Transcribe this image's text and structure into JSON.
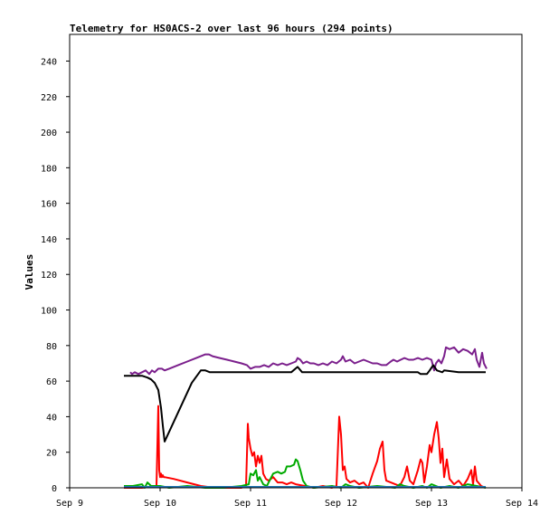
{
  "chart_data": {
    "type": "line",
    "title": "Telemetry for HS0ACS-2 over last 96 hours (294 points)",
    "ylabel": "Values",
    "xlabel": "",
    "x_unit": "days (September)",
    "xlim": [
      9,
      14
    ],
    "ylim": [
      0,
      255
    ],
    "x_ticks": [
      {
        "value": 9,
        "label": "Sep 9"
      },
      {
        "value": 10,
        "label": "Sep 10"
      },
      {
        "value": 11,
        "label": "Sep 11"
      },
      {
        "value": 12,
        "label": "Sep 12"
      },
      {
        "value": 13,
        "label": "Sep 13"
      },
      {
        "value": 14,
        "label": "Sep 14"
      }
    ],
    "y_ticks": [
      0,
      20,
      40,
      60,
      80,
      100,
      120,
      140,
      160,
      180,
      200,
      220,
      240
    ],
    "grid": false,
    "legend": "none",
    "series": [
      {
        "color": "#7b1f8c",
        "points": [
          [
            9.67,
            65
          ],
          [
            9.69,
            64
          ],
          [
            9.72,
            65
          ],
          [
            9.76,
            64
          ],
          [
            9.8,
            65
          ],
          [
            9.84,
            66
          ],
          [
            9.88,
            64
          ],
          [
            9.91,
            66
          ],
          [
            9.94,
            65
          ],
          [
            9.98,
            67
          ],
          [
            10.02,
            67
          ],
          [
            10.05,
            66
          ],
          [
            10.1,
            67
          ],
          [
            10.2,
            69
          ],
          [
            10.3,
            71
          ],
          [
            10.4,
            73
          ],
          [
            10.5,
            75
          ],
          [
            10.54,
            75
          ],
          [
            10.58,
            74
          ],
          [
            10.66,
            73
          ],
          [
            10.74,
            72
          ],
          [
            10.82,
            71
          ],
          [
            10.9,
            70
          ],
          [
            10.96,
            69
          ],
          [
            11.0,
            67
          ],
          [
            11.05,
            68
          ],
          [
            11.1,
            68
          ],
          [
            11.15,
            69
          ],
          [
            11.2,
            68
          ],
          [
            11.25,
            70
          ],
          [
            11.3,
            69
          ],
          [
            11.35,
            70
          ],
          [
            11.4,
            69
          ],
          [
            11.45,
            70
          ],
          [
            11.5,
            71
          ],
          [
            11.52,
            73
          ],
          [
            11.55,
            72
          ],
          [
            11.58,
            70
          ],
          [
            11.62,
            71
          ],
          [
            11.66,
            70
          ],
          [
            11.7,
            70
          ],
          [
            11.75,
            69
          ],
          [
            11.8,
            70
          ],
          [
            11.85,
            69
          ],
          [
            11.9,
            71
          ],
          [
            11.95,
            70
          ],
          [
            12.0,
            72
          ],
          [
            12.02,
            74
          ],
          [
            12.05,
            71
          ],
          [
            12.1,
            72
          ],
          [
            12.15,
            70
          ],
          [
            12.2,
            71
          ],
          [
            12.25,
            72
          ],
          [
            12.3,
            71
          ],
          [
            12.35,
            70
          ],
          [
            12.4,
            70
          ],
          [
            12.45,
            69
          ],
          [
            12.5,
            69
          ],
          [
            12.55,
            71
          ],
          [
            12.58,
            72
          ],
          [
            12.62,
            71
          ],
          [
            12.66,
            72
          ],
          [
            12.7,
            73
          ],
          [
            12.75,
            72
          ],
          [
            12.8,
            72
          ],
          [
            12.85,
            73
          ],
          [
            12.9,
            72
          ],
          [
            12.95,
            73
          ],
          [
            13.0,
            72
          ],
          [
            13.03,
            66
          ],
          [
            13.05,
            70
          ],
          [
            13.08,
            72
          ],
          [
            13.11,
            70
          ],
          [
            13.14,
            74
          ],
          [
            13.16,
            79
          ],
          [
            13.2,
            78
          ],
          [
            13.25,
            79
          ],
          [
            13.3,
            76
          ],
          [
            13.35,
            78
          ],
          [
            13.4,
            77
          ],
          [
            13.45,
            75
          ],
          [
            13.48,
            78
          ],
          [
            13.5,
            72
          ],
          [
            13.53,
            68
          ],
          [
            13.56,
            76
          ],
          [
            13.58,
            70
          ],
          [
            13.61,
            67
          ]
        ]
      },
      {
        "color": "#000000",
        "points": [
          [
            9.6,
            63
          ],
          [
            9.7,
            63
          ],
          [
            9.8,
            63
          ],
          [
            9.86,
            62
          ],
          [
            9.9,
            61
          ],
          [
            9.94,
            59
          ],
          [
            9.98,
            55
          ],
          [
            10.01,
            45
          ],
          [
            10.03,
            35
          ],
          [
            10.05,
            26
          ],
          [
            10.15,
            37
          ],
          [
            10.25,
            48
          ],
          [
            10.35,
            59
          ],
          [
            10.45,
            66
          ],
          [
            10.5,
            66
          ],
          [
            10.55,
            65
          ],
          [
            10.7,
            65
          ],
          [
            10.9,
            65
          ],
          [
            11.0,
            65
          ],
          [
            11.1,
            65
          ],
          [
            11.3,
            65
          ],
          [
            11.45,
            65
          ],
          [
            11.52,
            68
          ],
          [
            11.57,
            65
          ],
          [
            11.8,
            65
          ],
          [
            12.0,
            65
          ],
          [
            12.2,
            65
          ],
          [
            12.4,
            65
          ],
          [
            12.6,
            65
          ],
          [
            12.85,
            65
          ],
          [
            12.88,
            64
          ],
          [
            12.95,
            64
          ],
          [
            12.98,
            66
          ],
          [
            13.02,
            69
          ],
          [
            13.06,
            66
          ],
          [
            13.12,
            65
          ],
          [
            13.14,
            66
          ],
          [
            13.3,
            65
          ],
          [
            13.5,
            65
          ],
          [
            13.6,
            65
          ]
        ]
      },
      {
        "color": "#ff0000",
        "points": [
          [
            9.6,
            0
          ],
          [
            9.8,
            0
          ],
          [
            9.96,
            1
          ],
          [
            9.98,
            46
          ],
          [
            9.99,
            10
          ],
          [
            10.0,
            6
          ],
          [
            10.01,
            8
          ],
          [
            10.02,
            6
          ],
          [
            10.03,
            7
          ],
          [
            10.04,
            6
          ],
          [
            10.05,
            6
          ],
          [
            10.15,
            5
          ],
          [
            10.3,
            3
          ],
          [
            10.45,
            1
          ],
          [
            10.6,
            0
          ],
          [
            10.75,
            0
          ],
          [
            10.9,
            0
          ],
          [
            10.95,
            1
          ],
          [
            10.97,
            36
          ],
          [
            10.98,
            28
          ],
          [
            11.0,
            22
          ],
          [
            11.02,
            18
          ],
          [
            11.04,
            20
          ],
          [
            11.06,
            12
          ],
          [
            11.08,
            18
          ],
          [
            11.1,
            14
          ],
          [
            11.12,
            18
          ],
          [
            11.14,
            8
          ],
          [
            11.17,
            5
          ],
          [
            11.2,
            4
          ],
          [
            11.25,
            6
          ],
          [
            11.3,
            3
          ],
          [
            11.35,
            3
          ],
          [
            11.4,
            2
          ],
          [
            11.45,
            3
          ],
          [
            11.5,
            2
          ],
          [
            11.6,
            1
          ],
          [
            11.7,
            0
          ],
          [
            11.8,
            1
          ],
          [
            11.9,
            0
          ],
          [
            11.95,
            1
          ],
          [
            11.98,
            40
          ],
          [
            12.0,
            30
          ],
          [
            12.02,
            10
          ],
          [
            12.04,
            12
          ],
          [
            12.06,
            5
          ],
          [
            12.1,
            3
          ],
          [
            12.15,
            4
          ],
          [
            12.2,
            2
          ],
          [
            12.25,
            3
          ],
          [
            12.3,
            0
          ],
          [
            12.35,
            8
          ],
          [
            12.4,
            15
          ],
          [
            12.43,
            22
          ],
          [
            12.46,
            26
          ],
          [
            12.48,
            10
          ],
          [
            12.5,
            4
          ],
          [
            12.55,
            3
          ],
          [
            12.6,
            2
          ],
          [
            12.65,
            1
          ],
          [
            12.7,
            6
          ],
          [
            12.73,
            12
          ],
          [
            12.76,
            4
          ],
          [
            12.8,
            2
          ],
          [
            12.85,
            10
          ],
          [
            12.88,
            16
          ],
          [
            12.9,
            14
          ],
          [
            12.92,
            3
          ],
          [
            12.95,
            12
          ],
          [
            12.98,
            24
          ],
          [
            13.0,
            20
          ],
          [
            13.03,
            30
          ],
          [
            13.06,
            37
          ],
          [
            13.08,
            28
          ],
          [
            13.1,
            14
          ],
          [
            13.12,
            22
          ],
          [
            13.14,
            6
          ],
          [
            13.17,
            16
          ],
          [
            13.2,
            5
          ],
          [
            13.25,
            2
          ],
          [
            13.3,
            4
          ],
          [
            13.35,
            1
          ],
          [
            13.4,
            5
          ],
          [
            13.44,
            10
          ],
          [
            13.46,
            2
          ],
          [
            13.48,
            12
          ],
          [
            13.5,
            4
          ],
          [
            13.55,
            1
          ],
          [
            13.6,
            0
          ]
        ]
      },
      {
        "color": "#00aa00",
        "points": [
          [
            9.6,
            1
          ],
          [
            9.7,
            1
          ],
          [
            9.8,
            2
          ],
          [
            9.83,
            0
          ],
          [
            9.86,
            3
          ],
          [
            9.9,
            1
          ],
          [
            9.95,
            1
          ],
          [
            10.0,
            1
          ],
          [
            10.1,
            0
          ],
          [
            10.3,
            1
          ],
          [
            10.5,
            0
          ],
          [
            10.7,
            0
          ],
          [
            10.9,
            1
          ],
          [
            10.98,
            2
          ],
          [
            11.0,
            8
          ],
          [
            11.03,
            7
          ],
          [
            11.06,
            10
          ],
          [
            11.08,
            4
          ],
          [
            11.1,
            6
          ],
          [
            11.14,
            2
          ],
          [
            11.18,
            1
          ],
          [
            11.2,
            3
          ],
          [
            11.25,
            8
          ],
          [
            11.3,
            9
          ],
          [
            11.34,
            8
          ],
          [
            11.38,
            9
          ],
          [
            11.4,
            12
          ],
          [
            11.44,
            12
          ],
          [
            11.48,
            13
          ],
          [
            11.5,
            16
          ],
          [
            11.52,
            15
          ],
          [
            11.55,
            10
          ],
          [
            11.58,
            4
          ],
          [
            11.62,
            1
          ],
          [
            11.7,
            0
          ],
          [
            11.9,
            1
          ],
          [
            12.0,
            0
          ],
          [
            12.05,
            2
          ],
          [
            12.1,
            1
          ],
          [
            12.2,
            0
          ],
          [
            12.4,
            1
          ],
          [
            12.6,
            0
          ],
          [
            12.65,
            2
          ],
          [
            12.7,
            1
          ],
          [
            12.8,
            0
          ],
          [
            12.9,
            1
          ],
          [
            12.95,
            0
          ],
          [
            13.0,
            2
          ],
          [
            13.05,
            1
          ],
          [
            13.1,
            0
          ],
          [
            13.2,
            1
          ],
          [
            13.3,
            0
          ],
          [
            13.4,
            2
          ],
          [
            13.5,
            1
          ],
          [
            13.6,
            0
          ]
        ]
      },
      {
        "color": "#1f77b4",
        "points": [
          [
            9.6,
            0.5
          ],
          [
            10.0,
            0.5
          ],
          [
            10.5,
            0.5
          ],
          [
            11.0,
            0.5
          ],
          [
            11.5,
            0.5
          ],
          [
            12.0,
            0.5
          ],
          [
            12.5,
            0.5
          ],
          [
            13.0,
            0.5
          ],
          [
            13.6,
            0.5
          ]
        ]
      }
    ]
  }
}
